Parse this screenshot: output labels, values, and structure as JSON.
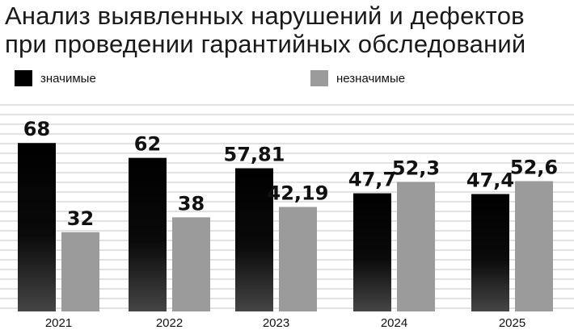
{
  "title_lines": [
    "Анализ выявленных нарушений и дефектов",
    "при проведении гарантийных обследований"
  ],
  "colors": {
    "significant_top": "#000000",
    "significant_bottom": "#3a3a3a",
    "insignificant": "#9b9b9b",
    "grid": "#d9d9d9",
    "text": "#111111"
  },
  "chart_data": {
    "type": "bar",
    "title": "Анализ выявленных нарушений и дефектов при проведении гарантийных обследований",
    "categories": [
      "2021",
      "2022",
      "2023",
      "2024",
      "2025"
    ],
    "series": [
      {
        "name": "значимые",
        "values": [
          68,
          62,
          57.81,
          47.7,
          47.4
        ],
        "labels": [
          "68",
          "62",
          "57,81",
          "47,7",
          "47,4"
        ]
      },
      {
        "name": "незначимые",
        "values": [
          32,
          38,
          42.19,
          52.3,
          52.6
        ],
        "labels": [
          "32",
          "38",
          "42,19",
          "52,3",
          "52,6"
        ]
      }
    ],
    "ylim": [
      0,
      80
    ],
    "grid": true,
    "legend_position": "top-left"
  }
}
